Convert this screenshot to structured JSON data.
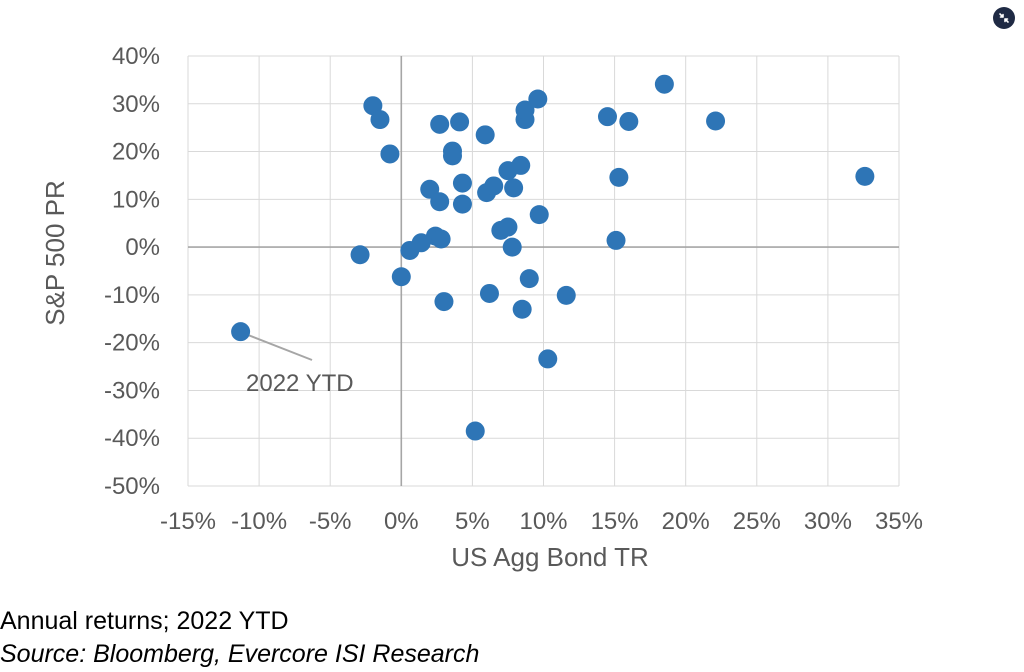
{
  "chart_data": {
    "type": "scatter",
    "title": "",
    "xlabel": "US Agg Bond TR",
    "ylabel": "S&P 500 PR",
    "xlim": [
      -15,
      35
    ],
    "ylim": [
      -50,
      40
    ],
    "x_ticks": [
      -15,
      -10,
      -5,
      0,
      5,
      10,
      15,
      20,
      25,
      30,
      35
    ],
    "y_ticks": [
      40,
      30,
      20,
      10,
      0,
      -10,
      -20,
      -30,
      -40,
      -50
    ],
    "x_tick_labels": [
      "-15%",
      "-10%",
      "-5%",
      "0%",
      "5%",
      "10%",
      "15%",
      "20%",
      "25%",
      "30%",
      "35%"
    ],
    "y_tick_labels": [
      "40%",
      "30%",
      "20%",
      "10%",
      "0%",
      "-10%",
      "-20%",
      "-30%",
      "-40%",
      "-50%"
    ],
    "grid": true,
    "marker_color": "#2e75b6",
    "grid_color": "#d9d9d9",
    "zero_line_color": "#a6a6a6",
    "points": [
      {
        "x": -11.3,
        "y": -17.7
      },
      {
        "x": -2.0,
        "y": 29.6
      },
      {
        "x": -1.5,
        "y": 26.7
      },
      {
        "x": -0.8,
        "y": 19.5
      },
      {
        "x": -2.9,
        "y": -1.6
      },
      {
        "x": 0.0,
        "y": -6.2
      },
      {
        "x": 0.6,
        "y": -0.7
      },
      {
        "x": 1.4,
        "y": 0.9
      },
      {
        "x": 2.0,
        "y": 12.1
      },
      {
        "x": 2.4,
        "y": 2.3
      },
      {
        "x": 2.7,
        "y": 9.5
      },
      {
        "x": 2.8,
        "y": 1.7
      },
      {
        "x": 2.7,
        "y": 25.7
      },
      {
        "x": 3.0,
        "y": -11.4
      },
      {
        "x": 3.6,
        "y": 20.1
      },
      {
        "x": 3.6,
        "y": 19.1
      },
      {
        "x": 4.1,
        "y": 26.2
      },
      {
        "x": 4.3,
        "y": 13.4
      },
      {
        "x": 4.3,
        "y": 9.0
      },
      {
        "x": 5.2,
        "y": -38.5
      },
      {
        "x": 5.9,
        "y": 23.5
      },
      {
        "x": 6.0,
        "y": 11.4
      },
      {
        "x": 6.2,
        "y": -9.7
      },
      {
        "x": 6.5,
        "y": 12.8
      },
      {
        "x": 7.0,
        "y": 3.5
      },
      {
        "x": 7.5,
        "y": 4.2
      },
      {
        "x": 7.5,
        "y": 16.0
      },
      {
        "x": 7.8,
        "y": 0.0
      },
      {
        "x": 7.9,
        "y": 12.4
      },
      {
        "x": 8.4,
        "y": 17.1
      },
      {
        "x": 8.5,
        "y": -13.0
      },
      {
        "x": 8.7,
        "y": 26.7
      },
      {
        "x": 8.7,
        "y": 28.7
      },
      {
        "x": 9.0,
        "y": -6.6
      },
      {
        "x": 9.6,
        "y": 31.0
      },
      {
        "x": 9.7,
        "y": 6.8
      },
      {
        "x": 10.3,
        "y": -23.4
      },
      {
        "x": 11.6,
        "y": -10.1
      },
      {
        "x": 14.5,
        "y": 27.3
      },
      {
        "x": 15.1,
        "y": 1.4
      },
      {
        "x": 15.3,
        "y": 14.6
      },
      {
        "x": 16.0,
        "y": 26.3
      },
      {
        "x": 18.5,
        "y": 34.1
      },
      {
        "x": 22.1,
        "y": 26.4
      },
      {
        "x": 32.6,
        "y": 14.8
      }
    ],
    "annotations": [
      {
        "text": "2022 YTD",
        "x": -11.3,
        "y": -17.7
      }
    ]
  },
  "caption": "Annual returns; 2022 YTD",
  "source": "Source: Bloomberg, Evercore ISI Research",
  "controls": {
    "collapse_icon": "collapse-arrows-icon",
    "collapse_color": "#1f2a44"
  }
}
